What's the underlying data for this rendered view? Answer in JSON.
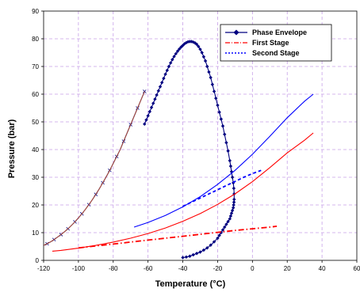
{
  "chart_data": {
    "type": "line",
    "xlabel": "Temperature (°C)",
    "ylabel": "Pressure (bar)",
    "xlim": [
      -120,
      60
    ],
    "ylim": [
      0,
      90
    ],
    "x_ticks": [
      "-120",
      "-100",
      "-80",
      "-60",
      "-40",
      "-20",
      "0",
      "20",
      "40",
      "60"
    ],
    "y_ticks": [
      "0",
      "10",
      "20",
      "30",
      "40",
      "50",
      "60",
      "70",
      "80",
      "90"
    ],
    "grid": "dashed-violet",
    "legend_position": "top-right",
    "legend": [
      {
        "label": "Phase Envelope",
        "color": "#000080",
        "style": "solid-diamond"
      },
      {
        "label": "First Stage",
        "color": "#ff0000",
        "style": "dash-dot"
      },
      {
        "label": "Second Stage",
        "color": "#0000ff",
        "style": "dotted"
      }
    ],
    "series": [
      {
        "name": "Phase Envelope",
        "color": "#000080",
        "marker": "diamond",
        "x": [
          -40,
          -38,
          -36,
          -34,
          -32,
          -30,
          -28,
          -26,
          -24,
          -22,
          -20,
          -19,
          -18,
          -17,
          -16,
          -15,
          -14,
          -13,
          -12.5,
          -12,
          -11.5,
          -11,
          -10.8,
          -10.6,
          -10.5,
          -10.5,
          -10.7,
          -11,
          -11.5,
          -12,
          -12.5,
          -13,
          -14,
          -15,
          -16,
          -17,
          -18,
          -19,
          -20,
          -21,
          -22,
          -23,
          -24,
          -25,
          -26,
          -27,
          -28,
          -29,
          -30,
          -31,
          -32,
          -33,
          -34,
          -35,
          -36,
          -37,
          -38,
          -39,
          -40,
          -41,
          -42,
          -43,
          -44,
          -45,
          -46,
          -47,
          -48,
          -49,
          -50,
          -51,
          -52,
          -53,
          -54,
          -55,
          -56,
          -57,
          -58,
          -59,
          -60,
          -61,
          -62
        ],
        "y": [
          1,
          1.2,
          1.5,
          2,
          2.5,
          3,
          3.7,
          4.5,
          5.5,
          6.7,
          8,
          9,
          10,
          11,
          12,
          13,
          14,
          15,
          16,
          17,
          18,
          19,
          20,
          21,
          22,
          24,
          26,
          28,
          30,
          32,
          34,
          36,
          39.5,
          42.5,
          45.5,
          48.5,
          51,
          53.5,
          56,
          58.5,
          61,
          63.5,
          66,
          68,
          70,
          72,
          73.5,
          75,
          76.2,
          77.2,
          78,
          78.5,
          78.8,
          79,
          79,
          78.9,
          78.6,
          78.2,
          77.6,
          77,
          76.3,
          75.5,
          74.6,
          73.6,
          72.5,
          71.3,
          70,
          68.6,
          67.2,
          65.7,
          64.2,
          62.7,
          61.2,
          59.7,
          58.2,
          56.7,
          55.2,
          53.7,
          52.2,
          50.7,
          49.2
        ]
      },
      {
        "name": "Phase Envelope (dew branch)",
        "color": "#000080",
        "marker": "x",
        "x": [
          -62,
          -64,
          -66,
          -68,
          -70,
          -72,
          -74,
          -76,
          -78,
          -80,
          -82,
          -84,
          -86,
          -88,
          -90,
          -92,
          -94,
          -96,
          -98,
          -100,
          -102,
          -104,
          -106,
          -108,
          -110,
          -112,
          -114,
          -116,
          -118,
          -120
        ],
        "y": [
          61,
          58,
          55,
          52,
          49,
          46,
          43,
          40,
          37.5,
          35,
          32.5,
          30.2,
          28,
          25.8,
          23.8,
          21.9,
          20.1,
          18.4,
          16.8,
          15.3,
          13.9,
          12.6,
          11.4,
          10.3,
          9.3,
          8.4,
          7.5,
          6.7,
          6.0,
          5.4
        ]
      },
      {
        "name": "First Stage",
        "color": "#ff0000",
        "style": "dash-dot",
        "x": [
          -100,
          -90,
          -80,
          -70,
          -60,
          -50,
          -40,
          -30,
          -20,
          -10,
          0,
          10,
          14
        ],
        "y": [
          4.5,
          5.2,
          5.9,
          6.6,
          7.3,
          8.0,
          8.7,
          9.4,
          10.1,
          10.8,
          11.4,
          12.0,
          12.3
        ]
      },
      {
        "name": "Second Stage",
        "color": "#0000ff",
        "style": "dotted",
        "x": [
          -40,
          -35,
          -30,
          -25,
          -20,
          -15,
          -10,
          -5,
          0,
          5
        ],
        "y": [
          19.5,
          21.0,
          22.5,
          24.0,
          25.5,
          27.0,
          28.5,
          30.0,
          31.3,
          32.5
        ]
      },
      {
        "name": "Red curve",
        "color": "#ff0000",
        "style": "solid",
        "x": [
          -115,
          -110,
          -100,
          -90,
          -80,
          -70,
          -60,
          -50,
          -40,
          -30,
          -20,
          -10,
          0,
          10,
          20,
          30,
          35
        ],
        "y": [
          3.3,
          3.6,
          4.4,
          5.4,
          6.6,
          8.0,
          9.7,
          11.7,
          14.1,
          16.9,
          20.2,
          24.0,
          28.4,
          33.5,
          38.8,
          43.4,
          46
        ]
      },
      {
        "name": "Blue curve",
        "color": "#0000ff",
        "style": "solid",
        "x": [
          -68,
          -60,
          -50,
          -40,
          -30,
          -20,
          -10,
          0,
          10,
          20,
          30,
          35
        ],
        "y": [
          12,
          13.7,
          16.2,
          19.3,
          23.0,
          27.4,
          32.5,
          38.3,
          44.8,
          51.5,
          57.5,
          60
        ]
      }
    ]
  }
}
